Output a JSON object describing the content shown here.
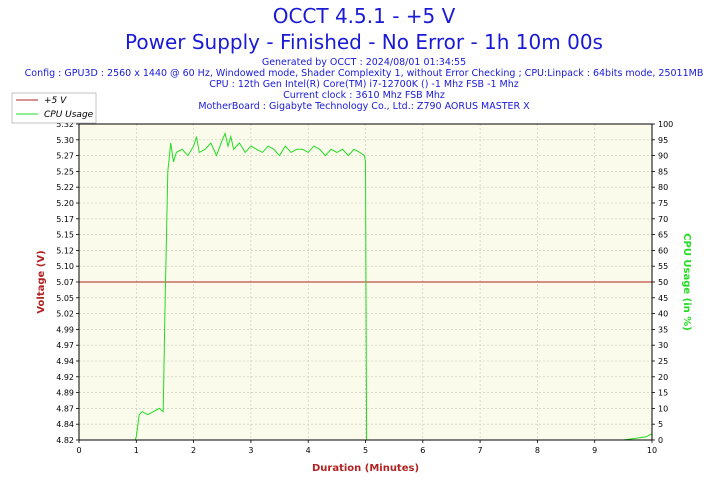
{
  "header": {
    "title": "OCCT 4.5.1 - +5 V",
    "subtitle": "Power Supply - Finished - No Error - 1h 10m 00s",
    "info_lines": [
      "Generated by OCCT : 2024/08/01 01:34:55",
      "Config : GPU3D : 2560 x 1440 @ 60 Hz, Windowed mode, Shader Complexity 1, without Error Checking ; CPU:Linpack : 64bits mode, 25011MB",
      "CPU : 12th Gen Intel(R) Core(TM) i7-12700K () -1 Mhz FSB -1 Mhz",
      "Current clock : 3610 Mhz FSB  Mhz",
      "MotherBoard : Gigabyte Technology Co., Ltd.: Z790 AORUS MASTER X"
    ]
  },
  "colors": {
    "voltage": "#b22222",
    "cpu": "#22dd22",
    "title": "#1a1ad6",
    "plot_bg": "#fbfbec",
    "grid": "#c8c8b4"
  },
  "chart_data": {
    "type": "line",
    "xlabel": "Duration (Minutes)",
    "ylabel_left": "Voltage (V)",
    "ylabel_right": "CPU Usage (in %)",
    "xlim": [
      0,
      10
    ],
    "ylim_left": [
      4.82,
      5.32
    ],
    "ylim_right": [
      0,
      100
    ],
    "x_ticks": [
      "0",
      "1",
      "2",
      "3",
      "4",
      "5",
      "6",
      "7",
      "8",
      "9",
      "10"
    ],
    "y_left_ticks": [
      "4.82",
      "4.84",
      "4.87",
      "4.89",
      "4.92",
      "4.94",
      "4.97",
      "4.99",
      "5.02",
      "5.05",
      "5.07",
      "5.10",
      "5.12",
      "5.15",
      "5.17",
      "5.20",
      "5.22",
      "5.25",
      "5.27",
      "5.30",
      "5.32"
    ],
    "y_right_ticks": [
      "0",
      "5",
      "10",
      "15",
      "20",
      "25",
      "30",
      "35",
      "40",
      "45",
      "50",
      "55",
      "60",
      "65",
      "70",
      "75",
      "80",
      "85",
      "90",
      "95",
      "100"
    ],
    "grid": true,
    "legend_position": "top-left",
    "series": [
      {
        "name": "+5 V",
        "axis": "left",
        "x": [
          0,
          10
        ],
        "y": [
          5.07,
          5.07
        ]
      },
      {
        "name": "CPU Usage",
        "axis": "right",
        "x": [
          0,
          0.5,
          0.98,
          1.0,
          1.05,
          1.1,
          1.2,
          1.3,
          1.4,
          1.47,
          1.5,
          1.55,
          1.58,
          1.6,
          1.65,
          1.7,
          1.8,
          1.9,
          2.0,
          2.05,
          2.1,
          2.2,
          2.3,
          2.4,
          2.5,
          2.55,
          2.6,
          2.65,
          2.7,
          2.8,
          2.9,
          3.0,
          3.1,
          3.2,
          3.3,
          3.4,
          3.5,
          3.6,
          3.7,
          3.8,
          3.9,
          4.0,
          4.1,
          4.2,
          4.3,
          4.4,
          4.5,
          4.6,
          4.7,
          4.8,
          4.9,
          4.98,
          5.0,
          5.02,
          5.5,
          6,
          6.5,
          7,
          7.5,
          8,
          8.5,
          9,
          9.5,
          9.9,
          10
        ],
        "y": [
          0,
          0,
          0,
          1,
          8,
          9,
          8,
          9,
          10,
          9,
          40,
          85,
          90,
          94,
          88,
          91,
          92,
          90,
          93,
          96,
          91,
          92,
          94,
          90,
          95,
          97,
          93,
          96,
          92,
          94,
          91,
          93,
          92,
          91,
          93,
          92,
          90,
          93,
          91,
          92,
          92,
          91,
          93,
          92,
          90,
          92,
          91,
          92,
          90,
          92,
          91,
          90,
          88,
          0,
          0,
          0,
          0,
          0,
          0,
          0,
          0,
          0,
          0,
          1,
          2
        ]
      }
    ]
  }
}
